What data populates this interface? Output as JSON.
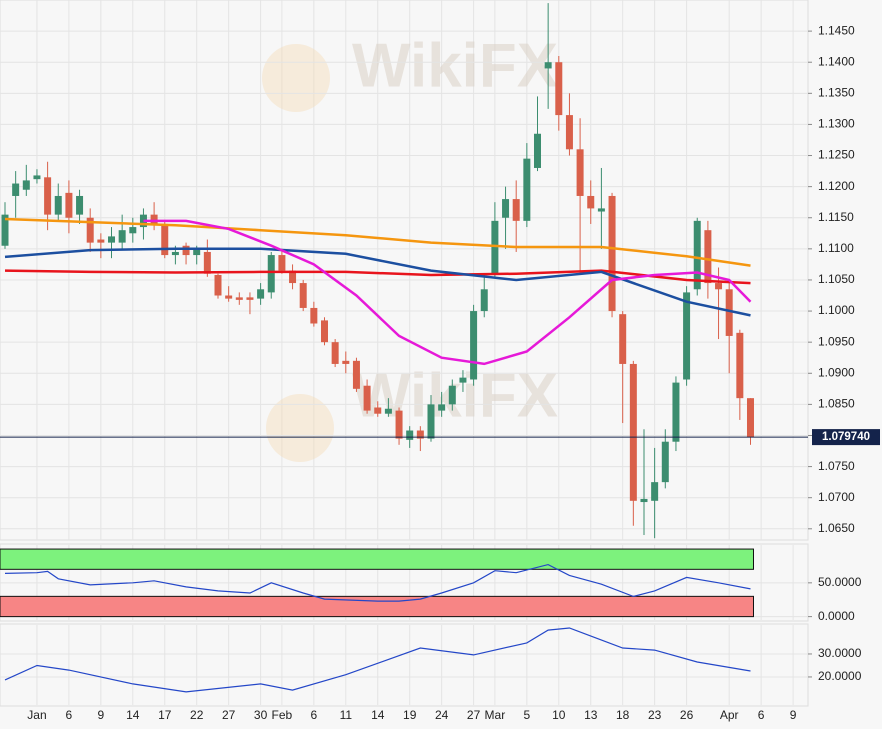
{
  "chart_data": [
    {
      "type": "candlestick",
      "watermark": "WikiFX",
      "up_color": "#3c8d6f",
      "down_color": "#d9604a",
      "x": [
        -3,
        -2,
        -1,
        0,
        1,
        2,
        3,
        4,
        5,
        6,
        7,
        8,
        9,
        10,
        11,
        12,
        13,
        14,
        15,
        16,
        17,
        18,
        19,
        20,
        21,
        22,
        23,
        24,
        25,
        26,
        27,
        28,
        29,
        30,
        31,
        32,
        33,
        34,
        35,
        36,
        37,
        38,
        39,
        40,
        41,
        42,
        43,
        44,
        45,
        46,
        47,
        48,
        49,
        50,
        51,
        52,
        53,
        54,
        55,
        56,
        57,
        58,
        59,
        60,
        61,
        62,
        63,
        64,
        65,
        66,
        67
      ],
      "open": [
        1.1105,
        1.1185,
        1.1195,
        1.1212,
        1.1215,
        1.1155,
        1.119,
        1.1155,
        1.115,
        1.1115,
        1.111,
        1.111,
        1.1125,
        1.1135,
        1.1155,
        1.114,
        1.109,
        1.1105,
        1.109,
        1.1095,
        1.1058,
        1.1025,
        1.1022,
        1.1022,
        1.102,
        1.103,
        1.109,
        1.1065,
        1.1045,
        1.1005,
        1.0985,
        1.095,
        1.092,
        1.092,
        1.088,
        1.0845,
        1.0835,
        1.084,
        1.0793,
        1.0808,
        1.0795,
        1.084,
        1.085,
        1.0885,
        1.089,
        1.1,
        1.106,
        1.115,
        1.118,
        1.1145,
        1.123,
        1.139,
        1.14,
        1.1315,
        1.126,
        1.1185,
        1.116,
        1.1185,
        1.0995,
        1.0915,
        1.0693,
        1.0695,
        1.0725,
        1.079,
        1.089,
        1.1035,
        1.113,
        1.1045,
        1.1035,
        1.0965,
        1.086
      ],
      "high": [
        1.1175,
        1.1225,
        1.1235,
        1.1228,
        1.124,
        1.1205,
        1.121,
        1.1195,
        1.1165,
        1.1125,
        1.1135,
        1.1155,
        1.115,
        1.1165,
        1.1175,
        1.1145,
        1.1105,
        1.111,
        1.1105,
        1.1115,
        1.106,
        1.104,
        1.103,
        1.103,
        1.1045,
        1.1095,
        1.11,
        1.1075,
        1.105,
        1.1015,
        1.099,
        1.0955,
        1.0935,
        1.0925,
        1.089,
        1.0855,
        1.086,
        1.0845,
        1.0815,
        1.0815,
        1.0865,
        1.087,
        1.089,
        1.0905,
        1.101,
        1.106,
        1.1175,
        1.12,
        1.121,
        1.127,
        1.1345,
        1.1495,
        1.141,
        1.135,
        1.131,
        1.121,
        1.123,
        1.119,
        1.1,
        1.092,
        1.081,
        1.078,
        1.081,
        1.0895,
        1.104,
        1.115,
        1.1145,
        1.107,
        1.105,
        1.097,
        1.086
      ],
      "low": [
        1.11,
        1.115,
        1.1185,
        1.1205,
        1.113,
        1.1145,
        1.1125,
        1.114,
        1.1095,
        1.1085,
        1.1085,
        1.11,
        1.111,
        1.1115,
        1.113,
        1.1085,
        1.1075,
        1.1075,
        1.1075,
        1.1055,
        1.102,
        1.1015,
        1.101,
        1.0995,
        1.101,
        1.102,
        1.106,
        1.1035,
        1.1,
        1.0975,
        1.0945,
        1.091,
        1.09,
        1.087,
        1.0835,
        1.083,
        1.083,
        1.0785,
        1.078,
        1.0775,
        1.079,
        1.083,
        1.084,
        1.087,
        1.088,
        1.099,
        1.1055,
        1.11,
        1.1095,
        1.1135,
        1.1225,
        1.1325,
        1.129,
        1.125,
        1.106,
        1.114,
        1.11,
        1.099,
        1.082,
        1.0655,
        1.064,
        1.0635,
        1.0715,
        1.0775,
        1.088,
        1.1025,
        1.102,
        1.0955,
        1.09,
        1.0825,
        1.0785
      ],
      "close": [
        1.1155,
        1.1205,
        1.121,
        1.1218,
        1.1155,
        1.1185,
        1.115,
        1.1185,
        1.111,
        1.111,
        1.112,
        1.113,
        1.1135,
        1.1155,
        1.114,
        1.109,
        1.1095,
        1.109,
        1.11,
        1.106,
        1.1025,
        1.102,
        1.1018,
        1.1018,
        1.1035,
        1.109,
        1.1065,
        1.1045,
        1.1005,
        1.098,
        1.095,
        1.0915,
        1.0915,
        1.0875,
        1.084,
        1.0835,
        1.0843,
        1.0795,
        1.0808,
        1.0795,
        1.085,
        1.085,
        1.088,
        1.0893,
        1.1,
        1.1035,
        1.1145,
        1.118,
        1.1145,
        1.1245,
        1.1285,
        1.14,
        1.1315,
        1.126,
        1.1185,
        1.1165,
        1.1165,
        1.1,
        1.0915,
        1.0695,
        1.0698,
        1.0725,
        1.079,
        1.0885,
        1.103,
        1.1145,
        1.1045,
        1.1035,
        1.096,
        1.086,
        1.0797
      ],
      "series": [
        {
          "color": "#f5960f",
          "x": [
            -3,
            5,
            13,
            21,
            29,
            37,
            45,
            53,
            61,
            67
          ],
          "values": [
            1.1148,
            1.1143,
            1.1138,
            1.113,
            1.1122,
            1.111,
            1.1103,
            1.1103,
            1.1088,
            1.1073
          ]
        },
        {
          "color": "#e8141c",
          "x": [
            -3,
            5,
            13,
            21,
            29,
            37,
            45,
            53,
            61,
            67
          ],
          "values": [
            1.1065,
            1.1063,
            1.1062,
            1.1063,
            1.1063,
            1.1058,
            1.106,
            1.1065,
            1.105,
            1.1045
          ]
        },
        {
          "color": "#1c4fa0",
          "x": [
            -3,
            5,
            13,
            21,
            29,
            37,
            45,
            53,
            61,
            67
          ],
          "values": [
            1.1087,
            1.1098,
            1.11,
            1.11,
            1.1092,
            1.1065,
            1.105,
            1.1063,
            1.1015,
            1.0993
          ]
        },
        {
          "color": "#e619d8",
          "x": [
            10,
            14,
            18,
            22,
            26,
            30,
            34,
            38,
            42,
            46,
            50,
            54,
            58,
            62,
            65,
            67
          ],
          "values": [
            1.1145,
            1.1145,
            1.1132,
            1.1105,
            1.1075,
            1.1025,
            1.096,
            1.0925,
            1.0915,
            1.0935,
            1.099,
            1.105,
            1.1058,
            1.1062,
            1.105,
            1.1015
          ]
        }
      ],
      "last_price": {
        "value": 1.07974,
        "label": "1.079740"
      },
      "last_price_color": "#14234b",
      "xlim": [
        -3.47,
        72.4
      ],
      "xticks": [
        {
          "value": 0,
          "label": "Jan"
        },
        {
          "value": 3,
          "label": "6"
        },
        {
          "value": 6,
          "label": "9"
        },
        {
          "value": 9,
          "label": "14"
        },
        {
          "value": 12,
          "label": "17"
        },
        {
          "value": 15,
          "label": "22"
        },
        {
          "value": 18,
          "label": "27"
        },
        {
          "value": 21,
          "label": "30"
        },
        {
          "value": 23,
          "label": "Feb"
        },
        {
          "value": 26,
          "label": "6"
        },
        {
          "value": 29,
          "label": "11"
        },
        {
          "value": 32,
          "label": "14"
        },
        {
          "value": 35,
          "label": "19"
        },
        {
          "value": 38,
          "label": "24"
        },
        {
          "value": 41,
          "label": "27"
        },
        {
          "value": 43,
          "label": "Mar"
        },
        {
          "value": 46,
          "label": "5"
        },
        {
          "value": 49,
          "label": "10"
        },
        {
          "value": 52,
          "label": "13"
        },
        {
          "value": 55,
          "label": "18"
        },
        {
          "value": 58,
          "label": "23"
        },
        {
          "value": 61,
          "label": "26"
        },
        {
          "value": 65,
          "label": "Apr"
        },
        {
          "value": 68,
          "label": "6"
        },
        {
          "value": 71,
          "label": "9"
        }
      ],
      "ylim": [
        1.0632,
        1.15
      ],
      "yticks": [
        {
          "value": 1.065,
          "label": "1.0650"
        },
        {
          "value": 1.07,
          "label": "1.0700"
        },
        {
          "value": 1.075,
          "label": "1.0750"
        },
        {
          "value": 1.08,
          "label": "1.0800"
        },
        {
          "value": 1.085,
          "label": "1.0850"
        },
        {
          "value": 1.09,
          "label": "1.0900"
        },
        {
          "value": 1.095,
          "label": "1.0950"
        },
        {
          "value": 1.1,
          "label": "1.1000"
        },
        {
          "value": 1.105,
          "label": "1.1050"
        },
        {
          "value": 1.11,
          "label": "1.1100"
        },
        {
          "value": 1.115,
          "label": "1.1150"
        },
        {
          "value": 1.12,
          "label": "1.1200"
        },
        {
          "value": 1.125,
          "label": "1.1250"
        },
        {
          "value": 1.13,
          "label": "1.1300"
        },
        {
          "value": 1.135,
          "label": "1.1350"
        },
        {
          "value": 1.14,
          "label": "1.1400"
        },
        {
          "value": 1.145,
          "label": "1.1450"
        }
      ],
      "grid": true
    },
    {
      "type": "line",
      "color": "#2447c8",
      "x": [
        -3,
        0,
        1,
        2,
        5,
        9,
        11,
        14,
        17,
        20,
        22,
        25,
        27,
        32,
        34,
        36,
        38,
        41,
        43,
        45,
        48,
        50,
        53,
        56,
        58,
        61,
        64,
        67
      ],
      "values": [
        64,
        65,
        67,
        56,
        47,
        50,
        53,
        44,
        38,
        35,
        50,
        35,
        26,
        23,
        23,
        26,
        35,
        50,
        68,
        65,
        77,
        61,
        48,
        30,
        38,
        58,
        50,
        41
      ],
      "bands": [
        {
          "from": 70,
          "to": 100,
          "color": "#7df27d"
        },
        {
          "from": 0,
          "to": 30,
          "color": "#f78585"
        }
      ],
      "ylim": [
        -5,
        106
      ],
      "yticks": [
        {
          "value": 50,
          "label": "50.0000"
        },
        {
          "value": 0,
          "label": "0.0000"
        }
      ],
      "grid": true
    },
    {
      "type": "line",
      "color": "#2447c8",
      "x": [
        -3,
        0,
        3,
        9,
        14,
        21,
        24,
        29,
        36,
        41,
        46,
        48,
        50,
        55,
        58,
        62,
        67
      ],
      "values": [
        18.7,
        25,
        23,
        17,
        13.5,
        17,
        14.3,
        21,
        32.6,
        29.6,
        34.8,
        40.4,
        41.3,
        32.6,
        31.7,
        26.5,
        22.6
      ],
      "ylim": [
        7.8,
        42.6
      ],
      "yticks": [
        {
          "value": 30,
          "label": "30.0000"
        },
        {
          "value": 20,
          "label": "20.0000"
        }
      ],
      "grid": true
    }
  ]
}
